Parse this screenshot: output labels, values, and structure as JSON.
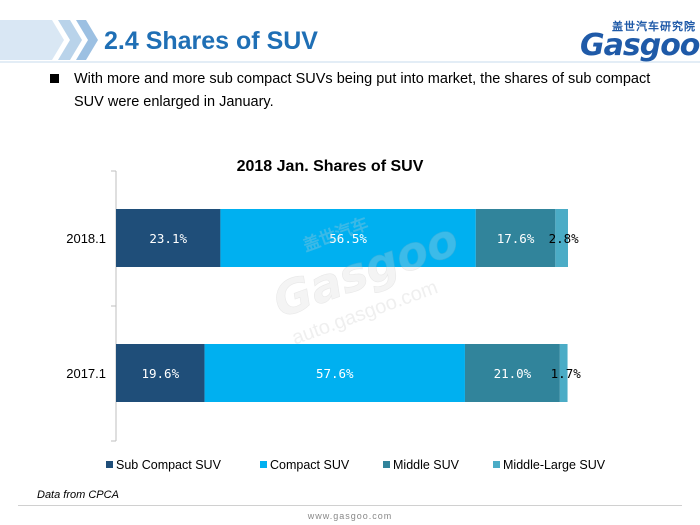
{
  "slide": {
    "title": "2.4 Shares of SUV",
    "bullet": "With more and more sub compact SUVs being put into market, the shares of sub compact SUV were enlarged in January.",
    "source": "Data from CPCA",
    "footer_url": "www.gasgoo.com",
    "logo_cn": "盖世汽车研究院",
    "logo_text": "Gasgoo",
    "watermark_url": "auto.gasgoo.com",
    "colors": {
      "title": "#1f6fb5",
      "arrow_light": "#d9e7f4",
      "arrow_mid": "#b9d3ea"
    }
  },
  "chart_data": {
    "type": "bar",
    "orientation": "horizontal",
    "stacked": "percent",
    "title": "2018 Jan. Shares of SUV",
    "categories": [
      "2018.1",
      "2017.1"
    ],
    "series": [
      {
        "name": "Sub Compact SUV",
        "color": "#1f4e79",
        "values": [
          23.1,
          19.6
        ],
        "labels": [
          "23.1%",
          "19.6%"
        ]
      },
      {
        "name": "Compact SUV",
        "color": "#00b0f0",
        "values": [
          56.5,
          57.6
        ],
        "labels": [
          "56.5%",
          "57.6%"
        ]
      },
      {
        "name": "Middle SUV",
        "color": "#31849b",
        "values": [
          17.6,
          21.0
        ],
        "labels": [
          "17.6%",
          "21.0%"
        ]
      },
      {
        "name": "Middle-Large SUV",
        "color": "#4bacc6",
        "values": [
          2.8,
          1.7
        ],
        "labels": [
          "2.8%",
          "1.7%"
        ]
      }
    ],
    "xlim": [
      0,
      100
    ],
    "legend_position": "bottom",
    "grid": false
  }
}
